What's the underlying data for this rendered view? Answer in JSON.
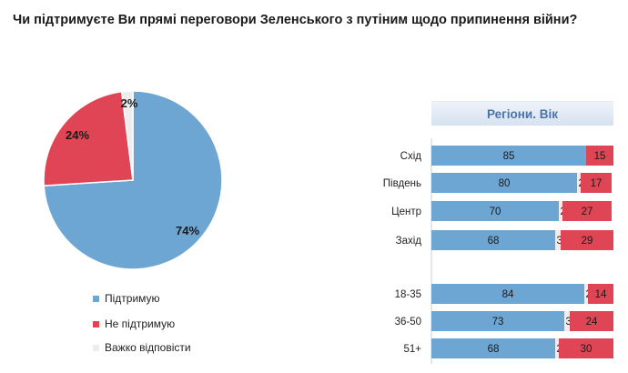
{
  "title": "Чи підтримуєте Ви прямі переговори Зеленського з путіним щодо припинення війни?",
  "colors": {
    "support": "#6ea6d3",
    "oppose": "#e04555",
    "hard": "#ededed"
  },
  "panel_header": "Регіони. Вік",
  "legend": [
    {
      "label": "Підтримую",
      "color": "#6ea6d3"
    },
    {
      "label": "Не підтримую",
      "color": "#e04555"
    },
    {
      "label": "Важко відповісти",
      "color": "#ededed"
    }
  ],
  "chart_data": [
    {
      "type": "pie",
      "slices": [
        {
          "label": "Підтримую",
          "value": 74,
          "display": "74%"
        },
        {
          "label": "Не підтримую",
          "value": 24,
          "display": "24%"
        },
        {
          "label": "Важко відповісти",
          "value": 2,
          "display": "2%"
        }
      ]
    },
    {
      "type": "bar",
      "orientation": "horizontal",
      "stacked": true,
      "categories": [
        "Схід",
        "Південь",
        "Центр",
        "Захід",
        "18-35",
        "36-50",
        "51+"
      ],
      "series": [
        {
          "name": "Підтримую",
          "values": [
            85,
            80,
            70,
            68,
            84,
            73,
            68
          ]
        },
        {
          "name": "Важко відповісти",
          "values": [
            0,
            2,
            2,
            3,
            2,
            3,
            2
          ]
        },
        {
          "name": "Не підтримую",
          "values": [
            15,
            17,
            27,
            29,
            14,
            24,
            30
          ]
        }
      ],
      "labels": [
        [
          "85",
          "",
          "15"
        ],
        [
          "80",
          "2",
          "17"
        ],
        [
          "70",
          "2",
          "27"
        ],
        [
          "68",
          "3",
          "29"
        ],
        [
          "84",
          "2",
          "14"
        ],
        [
          "73",
          "3",
          "24"
        ],
        [
          "68",
          "2",
          "30"
        ]
      ]
    }
  ]
}
